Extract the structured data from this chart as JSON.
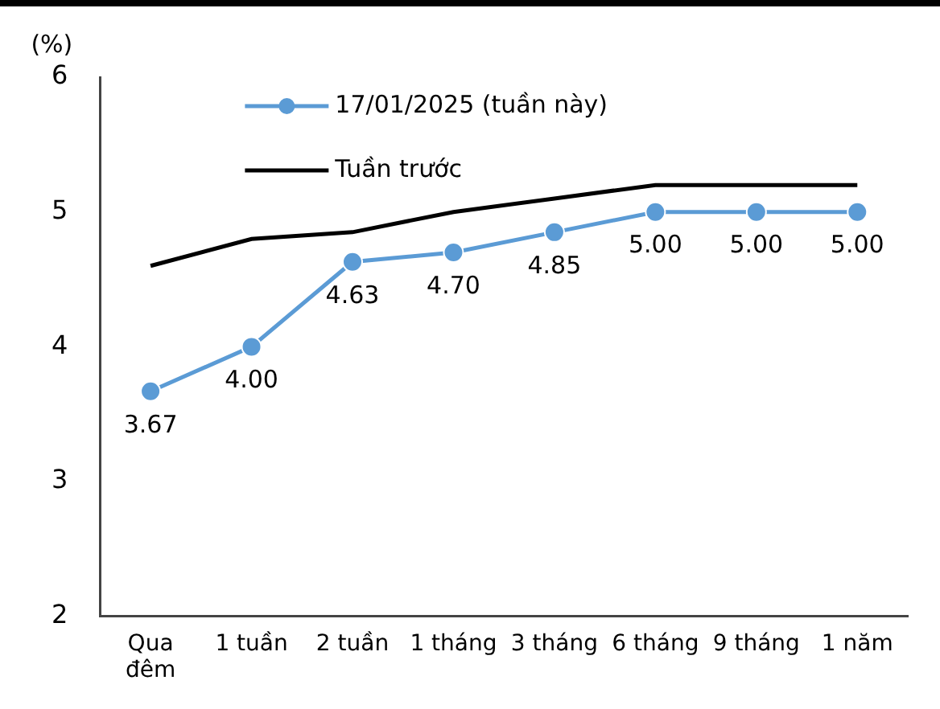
{
  "chart_data": {
    "type": "line",
    "ylabel": "(%)",
    "categories": [
      "Qua đêm",
      "1 tuần",
      "2 tuần",
      "1 tháng",
      "3 tháng",
      "6 tháng",
      "9 tháng",
      "1 năm"
    ],
    "series": [
      {
        "name": "17/01/2025 (tuần này)",
        "color": "#5b9bd5",
        "values": [
          3.67,
          4.0,
          4.63,
          4.7,
          4.85,
          5.0,
          5.0,
          5.0
        ],
        "value_labels": [
          "3.67",
          "4.00",
          "4.63",
          "4.70",
          "4.85",
          "5.00",
          "5.00",
          "5.00"
        ],
        "marker": "circle"
      },
      {
        "name": "Tuần trước",
        "color": "#000000",
        "values": [
          4.6,
          4.8,
          4.85,
          5.0,
          5.1,
          5.2,
          5.2,
          5.2
        ],
        "marker": "none"
      }
    ],
    "ylim": [
      2,
      6
    ],
    "yticks": [
      2,
      3,
      4,
      5,
      6
    ],
    "grid": false,
    "legend": "top",
    "line_style": "solid"
  }
}
